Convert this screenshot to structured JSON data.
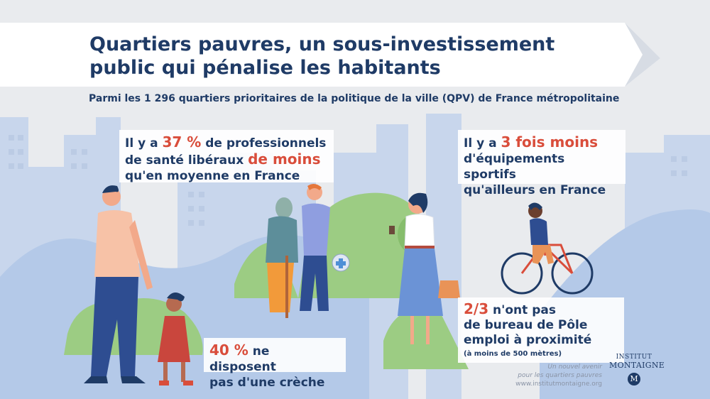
{
  "title": {
    "line1": "Quartiers pauvres, un sous-investissement",
    "line2": "public qui pénalise les habitants"
  },
  "subtitle": "Parmi les 1 296 quartiers prioritaires de la politique de la ville (QPV) de France métropolitaine",
  "cards": {
    "health": {
      "pre": "Il y a ",
      "highlight1": "37 %",
      "mid1": " de professionnels",
      "mid2": "de santé libéraux ",
      "highlight2": "de moins",
      "post": "qu'en moyenne en France"
    },
    "sport": {
      "pre": "Il y a ",
      "highlight": "3 fois moins",
      "line2": "d'équipements sportifs",
      "line3": "qu'ailleurs en France"
    },
    "employment": {
      "highlight": "2/3",
      "line1": " n'ont pas",
      "line2": "de bureau de Pôle",
      "line3": "emploi à proximité",
      "note": "(à moins de 500 mètres)"
    },
    "creche": {
      "highlight": "40 %",
      "line1": " ne disposent",
      "line2": "pas d'une crèche"
    }
  },
  "credit": {
    "line1": "Un nouvel avenir",
    "line2": "pour les quartiers pauvres",
    "url": "www.institutmontaigne.org"
  },
  "logo": {
    "line1": "INSTITUT",
    "line2": "MONTAIGNE",
    "mark": "M"
  },
  "colors": {
    "navy": "#1f3b66",
    "accent": "#d94d3b",
    "green": "#9ccc83",
    "sky": "#c9daf0"
  }
}
